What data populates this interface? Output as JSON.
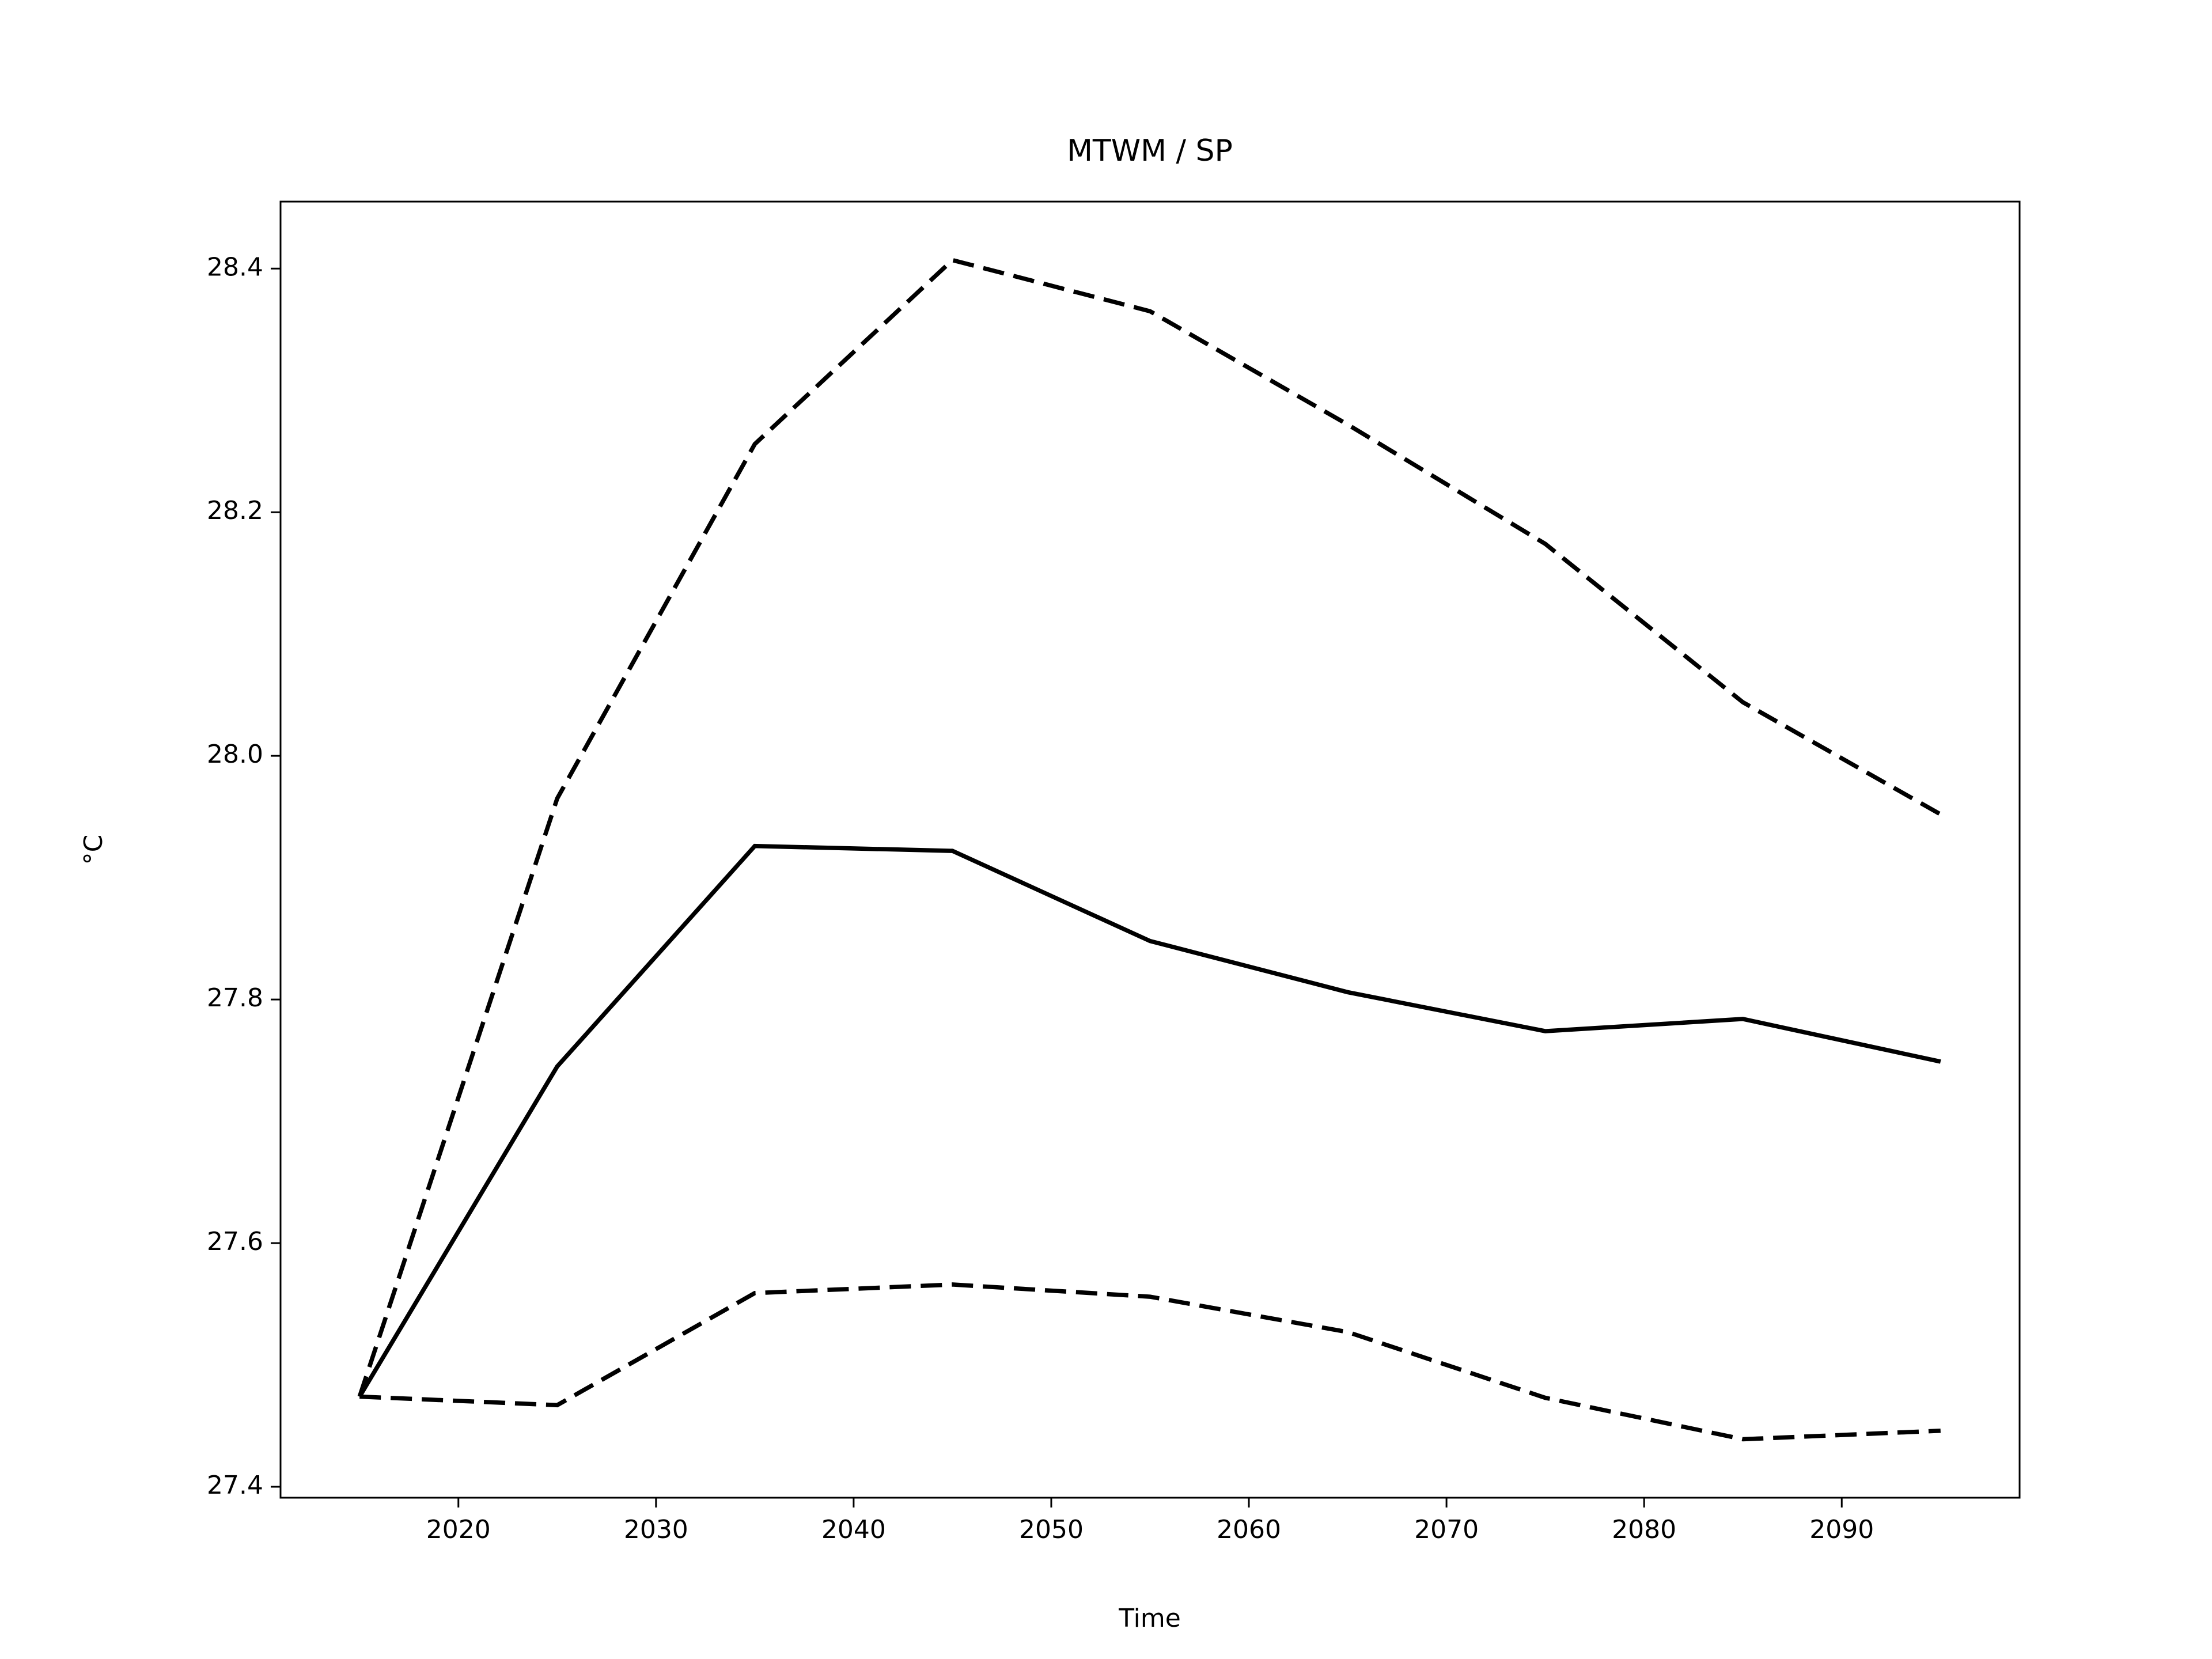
{
  "chart_data": {
    "type": "line",
    "title": "MTWM / SP",
    "xlabel": "Time",
    "ylabel": "°C",
    "x": [
      2015,
      2025,
      2035,
      2045,
      2055,
      2065,
      2075,
      2085,
      2095
    ],
    "series": [
      {
        "color": "#000000",
        "dashed": false,
        "values": [
          27.474,
          27.745,
          27.926,
          27.922,
          27.848,
          27.806,
          27.774,
          27.784,
          27.749
        ]
      },
      {
        "color": "#000000",
        "dashed": true,
        "values": [
          27.474,
          27.965,
          28.256,
          28.407,
          28.365,
          28.272,
          28.174,
          28.044,
          27.952
        ]
      },
      {
        "color": "#000000",
        "dashed": true,
        "values": [
          27.474,
          27.467,
          27.559,
          27.566,
          27.556,
          27.527,
          27.473,
          27.439,
          27.446
        ]
      }
    ],
    "xlim": [
      2011,
      2099
    ],
    "xticks": [
      2020,
      2030,
      2040,
      2050,
      2060,
      2070,
      2080,
      2090
    ],
    "ylim": [
      27.391,
      28.455
    ],
    "yticks": [
      27.4,
      27.6,
      27.8,
      {
        "value": 28,
        "label": "28.0"
      },
      28.2,
      28.4
    ],
    "grid": false
  }
}
